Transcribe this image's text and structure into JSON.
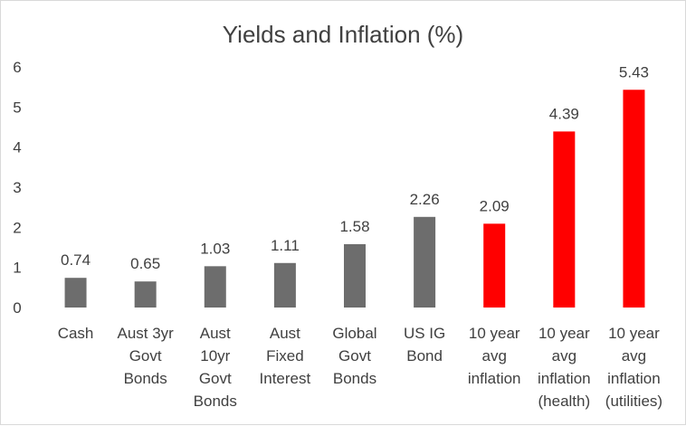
{
  "chart_data": {
    "type": "bar",
    "title": "Yields and Inflation (%)",
    "xlabel": "",
    "ylabel": "",
    "ylim": [
      0,
      6
    ],
    "yticks": [
      "0",
      "1",
      "2",
      "3",
      "4",
      "5",
      "6"
    ],
    "grid": false,
    "legend": "none",
    "categories": [
      [
        "Cash"
      ],
      [
        "Aust 3yr",
        "Govt",
        "Bonds"
      ],
      [
        "Aust",
        "10yr",
        "Govt",
        "Bonds"
      ],
      [
        "Aust",
        "Fixed",
        "Interest"
      ],
      [
        "Global",
        "Govt",
        "Bonds"
      ],
      [
        "US IG",
        "Bond"
      ],
      [
        "10 year",
        "avg",
        "inflation"
      ],
      [
        "10 year",
        "avg",
        "inflation",
        "(health)"
      ],
      [
        "10 year",
        "avg",
        "inflation",
        "(utilities)"
      ]
    ],
    "values": [
      0.74,
      0.65,
      1.03,
      1.11,
      1.58,
      2.26,
      2.09,
      4.39,
      5.43
    ],
    "data_labels": [
      "0.74",
      "0.65",
      "1.03",
      "1.11",
      "1.58",
      "2.26",
      "2.09",
      "4.39",
      "5.43"
    ],
    "colors": [
      "#6d6d6d",
      "#6d6d6d",
      "#6d6d6d",
      "#6d6d6d",
      "#6d6d6d",
      "#6d6d6d",
      "#ff0000",
      "#ff0000",
      "#ff0000"
    ]
  }
}
